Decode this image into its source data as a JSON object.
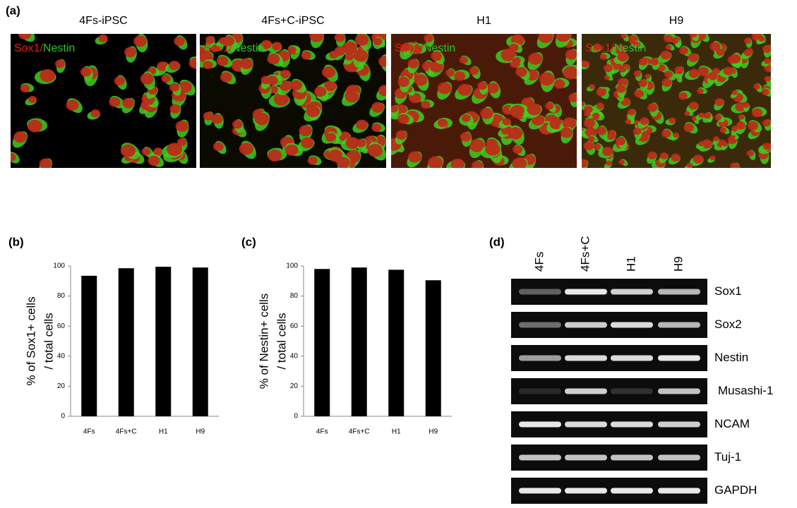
{
  "panel_a": {
    "label": "(a)",
    "images": [
      {
        "title": "4Fs-iPSC",
        "stain_red": "Sox1/",
        "stain_green": "Nestin"
      },
      {
        "title": "4Fs+C-iPSC",
        "stain_red": "Sox1/",
        "stain_green": "Nestin"
      },
      {
        "title": "H1",
        "stain_red": "Sox1/",
        "stain_green": "Nestin"
      },
      {
        "title": "H9",
        "stain_red": "Sox1/",
        "stain_green": "Nestin"
      }
    ]
  },
  "chart_data": [
    {
      "type": "bar",
      "panel": "(b)",
      "ylabel": [
        "% of Sox1+ cells",
        "/ total cells"
      ],
      "categories": [
        "4Fs",
        "4Fs+C",
        "H1",
        "H9"
      ],
      "values": [
        93.5,
        98.5,
        99.5,
        99
      ],
      "color": "#000000",
      "ylim": [
        0,
        100
      ],
      "yticks": [
        0,
        20,
        40,
        60,
        80,
        100
      ]
    },
    {
      "type": "bar",
      "panel": "(c)",
      "ylabel": [
        "% of Nestin+ cells",
        "/ total cells"
      ],
      "categories": [
        "4Fs",
        "4Fs+C",
        "H1",
        "H9"
      ],
      "values": [
        98,
        99,
        97.5,
        90.5
      ],
      "color": "#000000",
      "ylim": [
        0,
        100
      ],
      "yticks": [
        0,
        20,
        40,
        60,
        80,
        100
      ]
    }
  ],
  "panel_d": {
    "label": "(d)",
    "lanes": [
      "4Fs",
      "4Fs+C",
      "H1",
      "H9"
    ],
    "genes": [
      "Sox1",
      "Sox2",
      "Nestin",
      "Musashi-1",
      "NCAM",
      "Tuj-1",
      "GAPDH"
    ]
  }
}
